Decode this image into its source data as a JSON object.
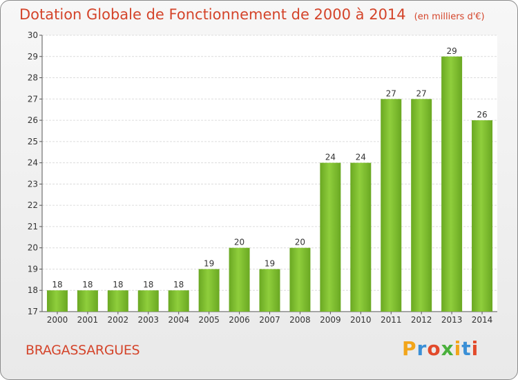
{
  "chart_data": {
    "type": "bar",
    "title": "Dotation Globale de Fonctionnement de 2000 à 2014",
    "unit": "(en milliers d'€)",
    "categories": [
      "2000",
      "2001",
      "2002",
      "2003",
      "2004",
      "2005",
      "2006",
      "2007",
      "2008",
      "2009",
      "2010",
      "2011",
      "2012",
      "2013",
      "2014"
    ],
    "values": [
      18,
      18,
      18,
      18,
      18,
      19,
      20,
      19,
      20,
      24,
      24,
      27,
      27,
      29,
      26
    ],
    "ylim": [
      17,
      30
    ],
    "yticks": [
      17,
      18,
      19,
      20,
      21,
      22,
      23,
      24,
      25,
      26,
      27,
      28,
      29,
      30
    ],
    "grid": true,
    "bar_color": "#7fbe2f",
    "xlabel": "",
    "ylabel": ""
  },
  "footer": {
    "commune": "BRAGASSARGUES",
    "logo": {
      "letters": [
        "P",
        "r",
        "o",
        "x",
        "i",
        "t",
        "i"
      ],
      "colors": [
        "#f2a51a",
        "#3a8fd6",
        "#e24a2b",
        "#4ab03c",
        "#f2a51a",
        "#3a8fd6",
        "#e24a2b"
      ]
    }
  }
}
